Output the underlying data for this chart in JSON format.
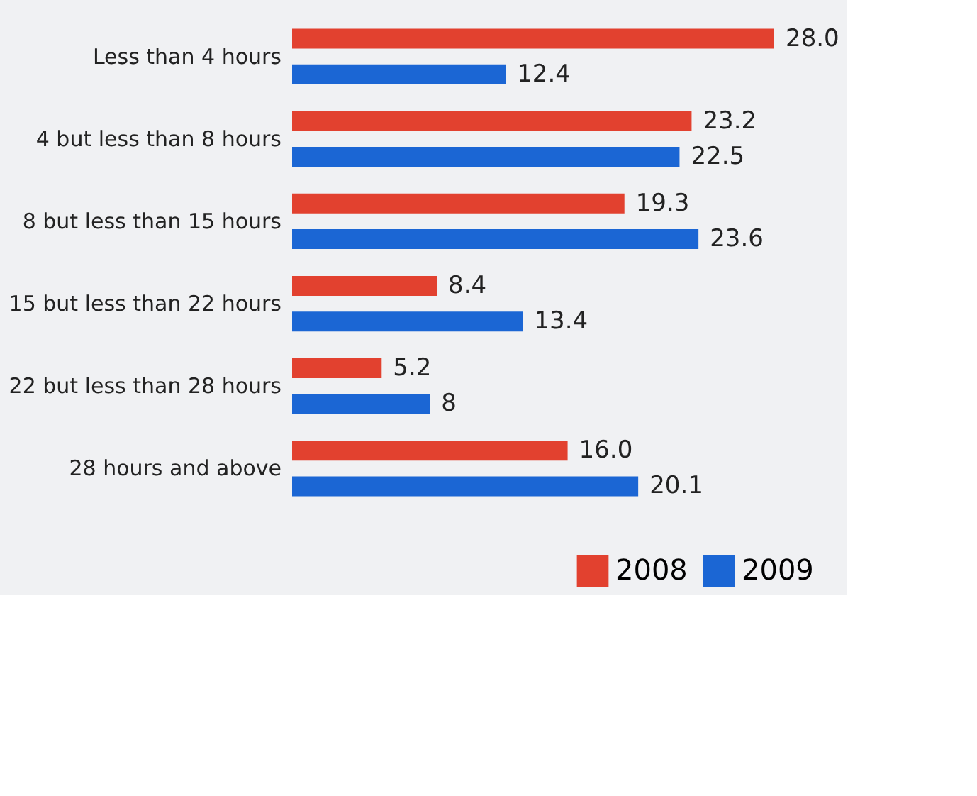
{
  "chart_data": {
    "type": "bar",
    "orientation": "horizontal",
    "categories": [
      "Less than 4 hours",
      "4 but less than 8 hours",
      "8 but less than 15 hours",
      "15 but less than 22 hours",
      "22 but less than 28 hours",
      "28 hours and above"
    ],
    "series": [
      {
        "name": "2008",
        "color": "#e2412f",
        "values": [
          28.0,
          23.2,
          19.3,
          8.4,
          5.2,
          16.0
        ],
        "value_labels": [
          "28.0",
          "23.2",
          "19.3",
          "8.4",
          "5.2",
          "16.0"
        ]
      },
      {
        "name": "2009",
        "color": "#1b66d4",
        "values": [
          12.4,
          22.5,
          23.6,
          13.4,
          8,
          20.1
        ],
        "value_labels": [
          "12.4",
          "22.5",
          "23.6",
          "13.4",
          "8",
          "20.1"
        ]
      }
    ],
    "legend": "bottom right",
    "grid": false
  }
}
